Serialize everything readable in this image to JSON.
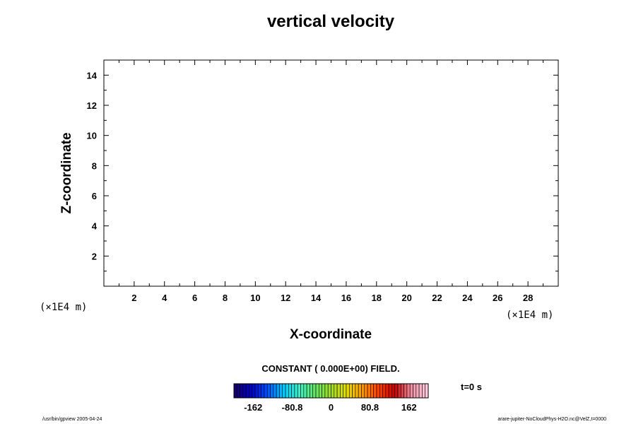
{
  "chart_data": {
    "type": "heatmap",
    "title": "vertical velocity",
    "xlabel": "X-coordinate",
    "ylabel": "Z-coordinate",
    "x_unit": "(×1E4 m)",
    "y_unit": "(×1E4 m)",
    "xlim": [
      0,
      30
    ],
    "ylim": [
      0,
      15
    ],
    "x_major_ticks": [
      "2",
      "4",
      "6",
      "8",
      "10",
      "12",
      "14",
      "16",
      "18",
      "20",
      "22",
      "24",
      "26",
      "28"
    ],
    "y_major_ticks": [
      "2",
      "4",
      "6",
      "8",
      "10",
      "12",
      "14"
    ],
    "field_message": "CONSTANT ( 0.000E+00) FIELD.",
    "field_value": 0,
    "time_label": "t=0 s",
    "colorbar": {
      "min": -202,
      "max": 202,
      "ticks": [
        "-162",
        "-80.8",
        "0",
        "80.8",
        "162"
      ],
      "tick_values": [
        -162,
        -80.8,
        0,
        80.8,
        162
      ],
      "n_levels": 64,
      "colors": [
        "#14006e",
        "#0000c8",
        "#0050ff",
        "#00c8ff",
        "#3cf0c8",
        "#64e664",
        "#a0dc28",
        "#e6dc00",
        "#ff9600",
        "#ff3c00",
        "#c80000",
        "#f08ca0",
        "#ffc8dc"
      ]
    },
    "grid": false
  },
  "footer": {
    "left": "/usr/bin/gpview 2005-04-24",
    "right": "arare-jupiter-NoCloudPhys-H2O.nc@VelZ,t=0000"
  }
}
